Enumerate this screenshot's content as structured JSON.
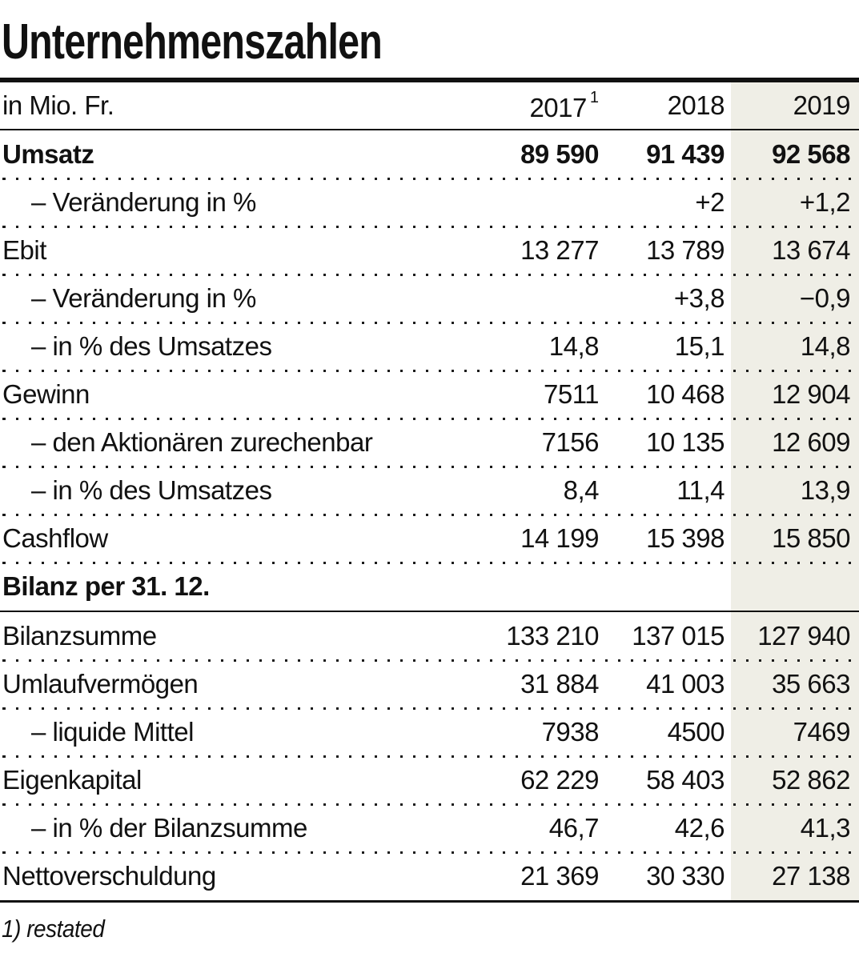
{
  "title": "Unternehmenszahlen",
  "footnote": "1) restated",
  "highlight_color": "#efeee6",
  "text_color": "#111111",
  "table": {
    "unit_label": "in Mio. Fr.",
    "columns": [
      {
        "label": "2017",
        "footnote_marker": "1"
      },
      {
        "label": "2018",
        "footnote_marker": ""
      },
      {
        "label": "2019",
        "footnote_marker": ""
      }
    ],
    "highlighted_column": "2019",
    "rows": [
      {
        "label": "Umsatz",
        "bold": true,
        "indent": false,
        "values": [
          "89 590",
          "91 439",
          "92 568"
        ]
      },
      {
        "label": "– Veränderung in %",
        "bold": false,
        "indent": true,
        "values": [
          "",
          "+2",
          "+1,2"
        ]
      },
      {
        "label": "Ebit",
        "bold": false,
        "indent": false,
        "values": [
          "13 277",
          "13 789",
          "13 674"
        ]
      },
      {
        "label": "– Veränderung in %",
        "bold": false,
        "indent": true,
        "values": [
          "",
          "+3,8",
          "−0,9"
        ]
      },
      {
        "label": "– in % des Umsatzes",
        "bold": false,
        "indent": true,
        "values": [
          "14,8",
          "15,1",
          "14,8"
        ]
      },
      {
        "label": "Gewinn",
        "bold": false,
        "indent": false,
        "values": [
          "7511",
          "10 468",
          "12 904"
        ]
      },
      {
        "label": "– den Aktionären zurechenbar",
        "bold": false,
        "indent": true,
        "values": [
          "7156",
          "10 135",
          "12 609"
        ]
      },
      {
        "label": "– in % des Umsatzes",
        "bold": false,
        "indent": true,
        "values": [
          "8,4",
          "11,4",
          "13,9"
        ]
      },
      {
        "label": "Cashflow",
        "bold": false,
        "indent": false,
        "values": [
          "14 199",
          "15 398",
          "15 850"
        ]
      },
      {
        "type": "section",
        "label": "Bilanz per 31. 12."
      },
      {
        "label": "Bilanzsumme",
        "bold": false,
        "indent": false,
        "values": [
          "133 210",
          "137 015",
          "127 940"
        ]
      },
      {
        "label": "Umlaufvermögen",
        "bold": false,
        "indent": false,
        "values": [
          "31 884",
          "41 003",
          "35 663"
        ]
      },
      {
        "label": "– liquide Mittel",
        "bold": false,
        "indent": true,
        "values": [
          "7938",
          "4500",
          "7469"
        ]
      },
      {
        "label": "Eigenkapital",
        "bold": false,
        "indent": false,
        "values": [
          "62 229",
          "58 403",
          "52 862"
        ]
      },
      {
        "label": "– in % der Bilanzsumme",
        "bold": false,
        "indent": true,
        "values": [
          "46,7",
          "42,6",
          "41,3"
        ]
      },
      {
        "label": "Nettoverschuldung",
        "bold": false,
        "indent": false,
        "values": [
          "21 369",
          "30 330",
          "27 138"
        ]
      }
    ]
  }
}
